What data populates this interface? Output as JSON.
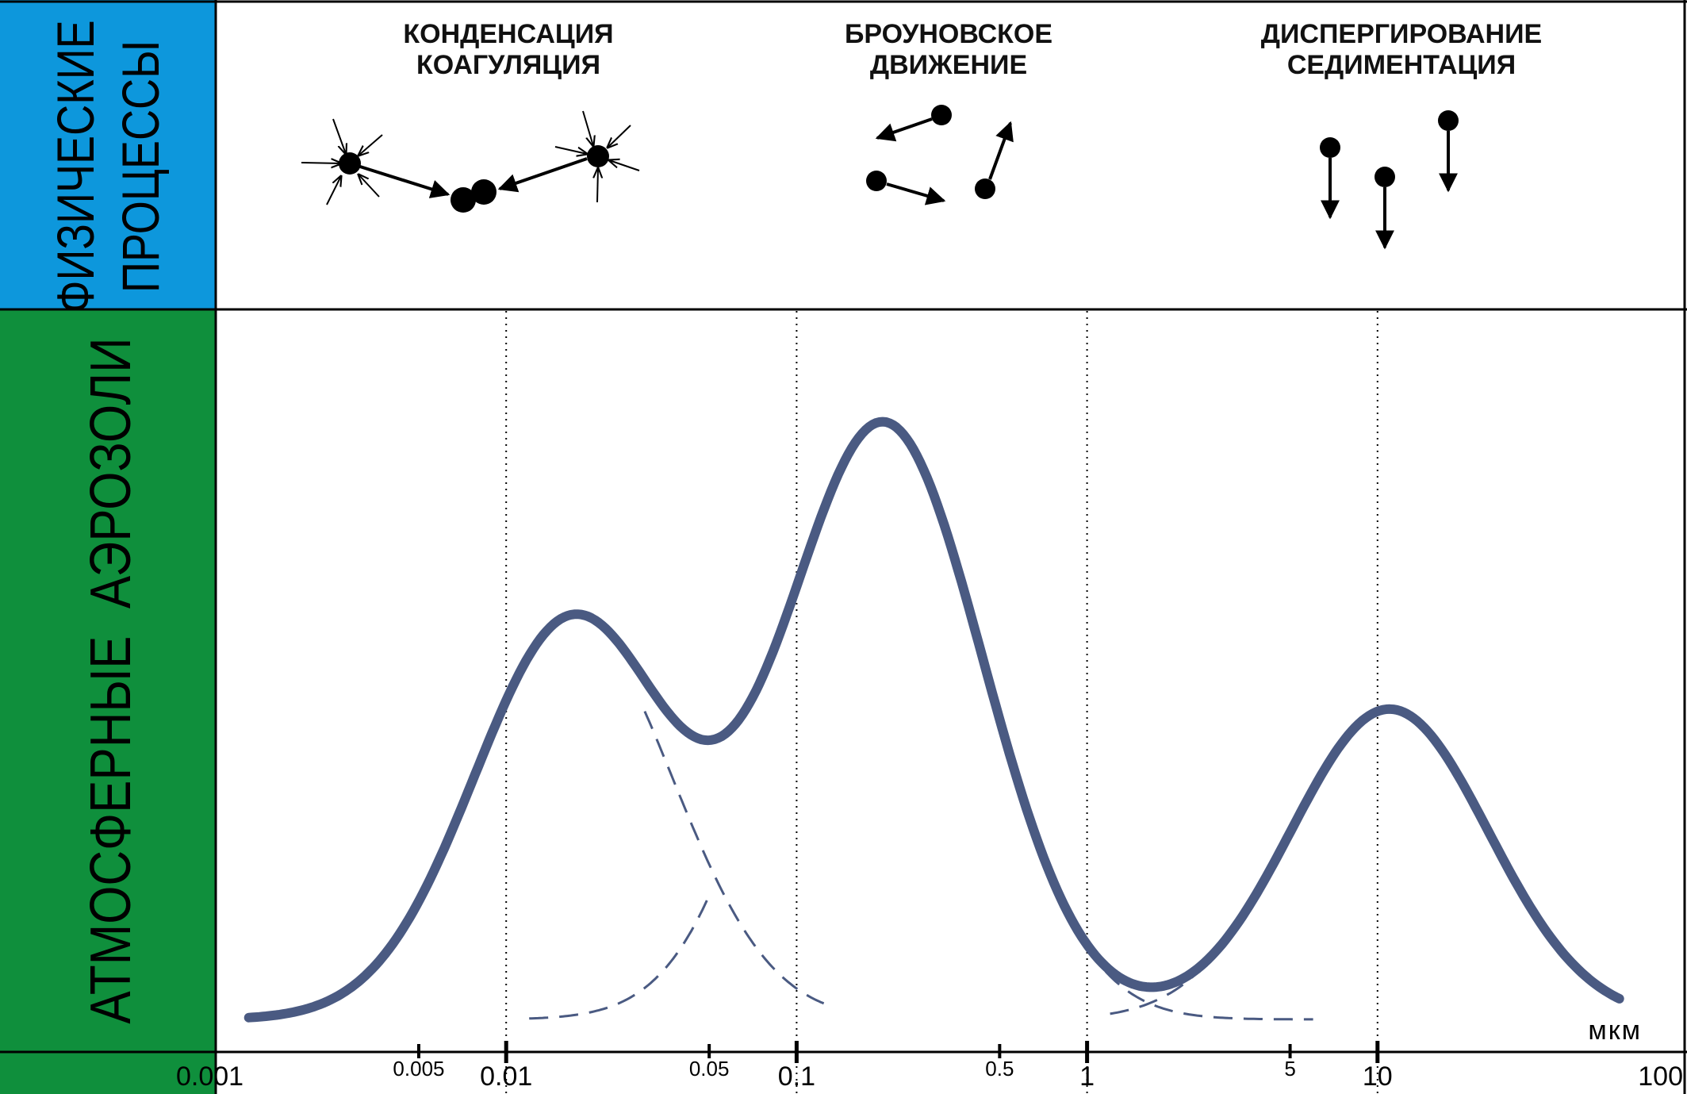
{
  "sidebar": {
    "top_label_line1": "ФИЗИЧЕСКИЕ",
    "top_label_line2": "ПРОЦЕССЫ",
    "bottom_label": "АТМОСФЕРНЫЕ  АЭРОЗОЛИ",
    "top_color": "#0d97dc",
    "bottom_color": "#0f8f3c"
  },
  "processes": [
    {
      "line1": "КОНДЕНСАЦИЯ",
      "line2": "КОАГУЛЯЦИЯ"
    },
    {
      "line1": "БРОУНОВСКОЕ",
      "line2": "ДВИЖЕНИЕ"
    },
    {
      "line1": "ДИСПЕРГИРОВАНИЕ",
      "line2": "СЕДИМЕНТАЦИЯ"
    }
  ],
  "axis": {
    "unit": "мкм",
    "major_ticks": [
      {
        "value": 0.001,
        "label": "0.001"
      },
      {
        "value": 0.01,
        "label": "0.01"
      },
      {
        "value": 0.1,
        "label": "0.1"
      },
      {
        "value": 1,
        "label": "1"
      },
      {
        "value": 10,
        "label": "10"
      },
      {
        "value": 100,
        "label": "100"
      }
    ],
    "minor_ticks": [
      {
        "value": 0.005,
        "label": "0.005"
      },
      {
        "value": 0.05,
        "label": "0.05"
      },
      {
        "value": 0.5,
        "label": "0.5"
      },
      {
        "value": 5,
        "label": "5"
      }
    ],
    "xmin": 0.001,
    "xmax": 100,
    "scale": "log"
  },
  "curve": {
    "color": "#4a5a82",
    "modes": [
      {
        "peak_x": 0.017,
        "peak_height": 0.62
      },
      {
        "peak_x": 0.2,
        "peak_height": 0.92
      },
      {
        "peak_x": 11,
        "peak_height": 0.48
      }
    ]
  }
}
